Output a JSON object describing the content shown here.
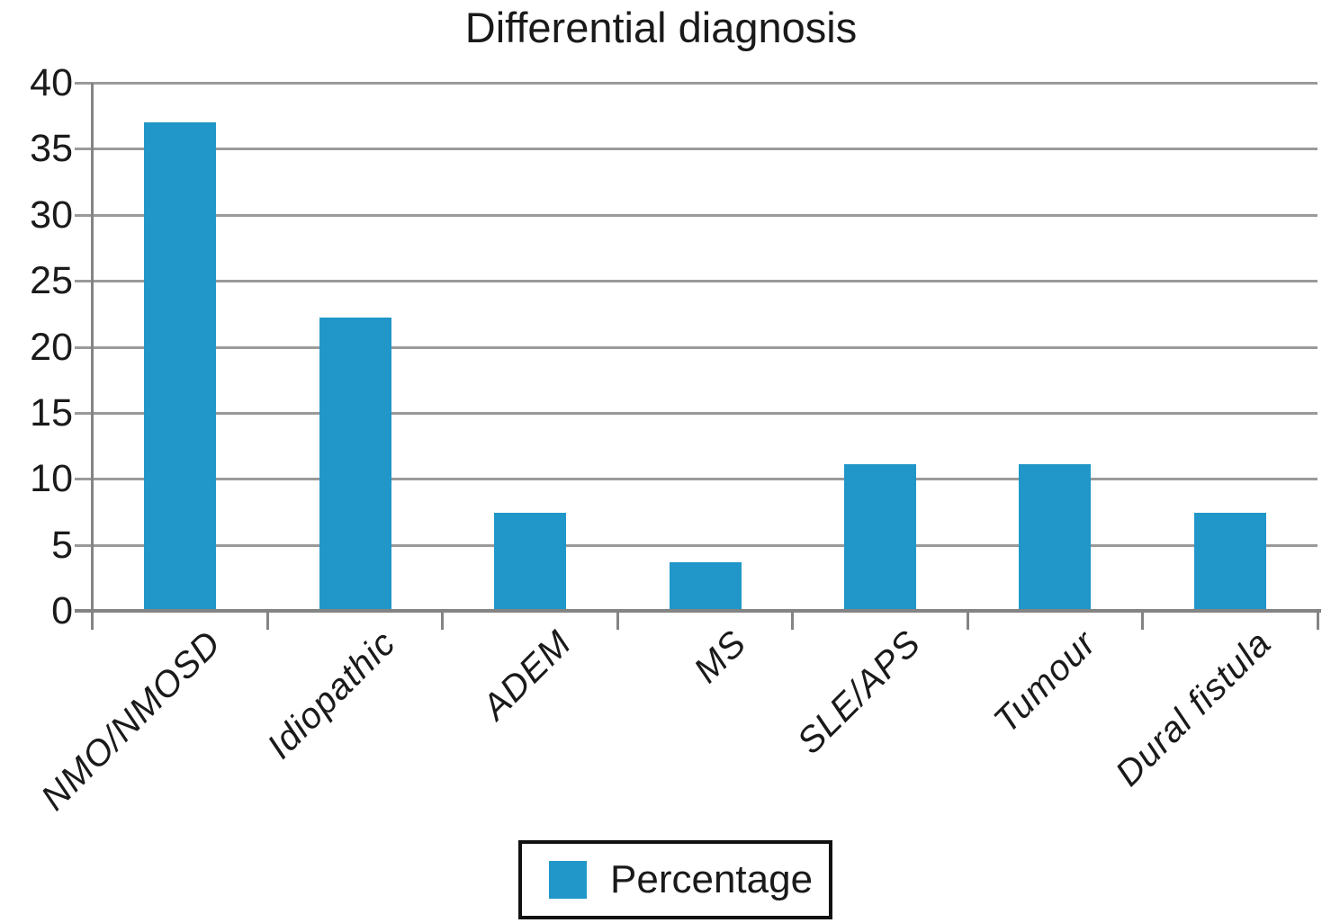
{
  "chart_data": {
    "type": "bar",
    "title": "Differential diagnosis",
    "categories": [
      "NMO/NMOSD",
      "Idiopathic",
      "ADEM",
      "MS",
      "SLE/APS",
      "Tumour",
      "Dural fistula"
    ],
    "series": [
      {
        "name": "Percentage",
        "values": [
          37,
          22.2,
          7.4,
          3.7,
          11.1,
          11.1,
          7.4
        ]
      }
    ],
    "xlabel": "",
    "ylabel": "",
    "ylim": [
      0,
      40
    ],
    "yticks": [
      0,
      5,
      10,
      15,
      20,
      25,
      30,
      35,
      40
    ],
    "grid": true,
    "gridlines": "horizontal",
    "x_tick_label_style": "italic, rotated 45 degrees",
    "legend": {
      "label": "Percentage",
      "position": "bottom-center",
      "border": true
    },
    "colors": {
      "bar": "#2097C8",
      "grid": "#9A9A9A",
      "axis": "#848484",
      "text": "#1A1A1A",
      "legend_border": "#111111",
      "background": "#FFFFFF"
    }
  }
}
